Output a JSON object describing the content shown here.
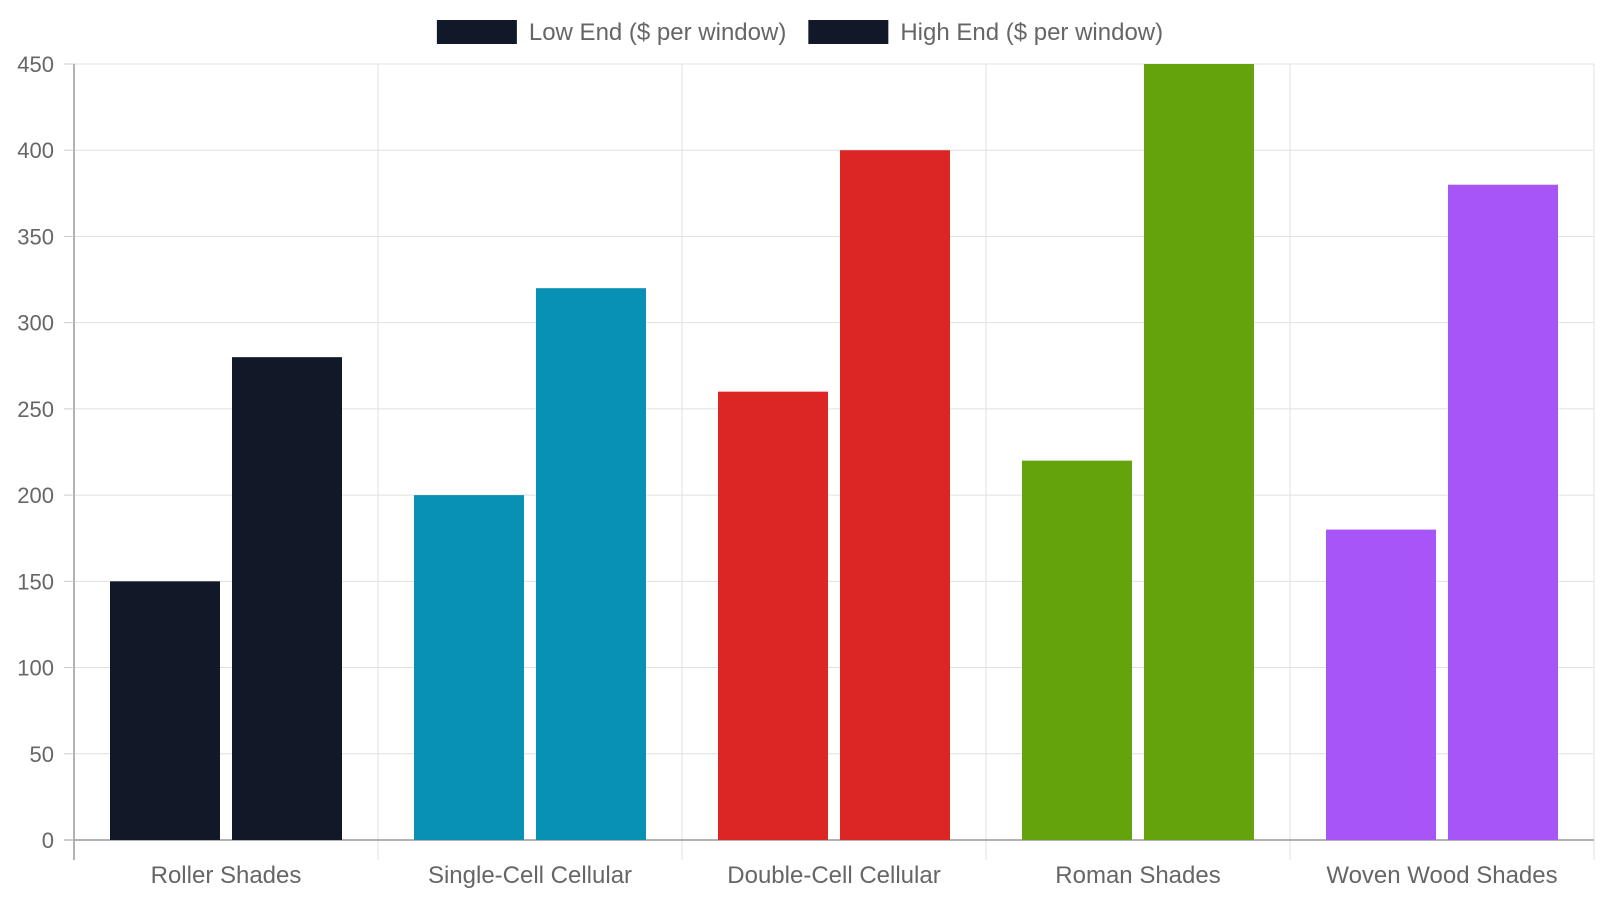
{
  "chart_data": {
    "type": "bar",
    "title": "",
    "xlabel": "",
    "ylabel": "",
    "categories": [
      "Roller Shades",
      "Single-Cell Cellular",
      "Double-Cell Cellular",
      "Roman Shades",
      "Woven Wood Shades"
    ],
    "series": [
      {
        "name": "Low End ($ per window)",
        "values": [
          150,
          200,
          260,
          220,
          180
        ]
      },
      {
        "name": "High End ($ per window)",
        "values": [
          280,
          320,
          400,
          450,
          380
        ]
      }
    ],
    "category_colors": [
      "#111827",
      "#0891b2",
      "#dc2626",
      "#65a30d",
      "#a855f7"
    ],
    "legend_swatch_color": "#111827",
    "ylim": [
      0,
      450
    ],
    "yticks": [
      0,
      50,
      100,
      150,
      200,
      250,
      300,
      350,
      400,
      450
    ],
    "grid": true,
    "legend_position": "top-center"
  }
}
